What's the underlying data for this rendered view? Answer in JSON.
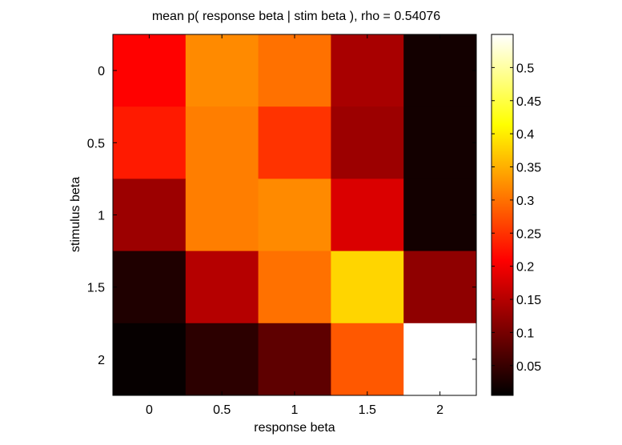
{
  "chart_data": {
    "type": "heatmap",
    "title": "mean p( response beta | stim beta ), rho = 0.54076",
    "xlabel": "response beta",
    "ylabel": "stimulus beta",
    "x_categories": [
      "0",
      "0.5",
      "1",
      "1.5",
      "2"
    ],
    "y_categories": [
      "0",
      "0.5",
      "1",
      "1.5",
      "2"
    ],
    "values": [
      [
        0.21,
        0.32,
        0.3,
        0.14,
        0.02
      ],
      [
        0.23,
        0.31,
        0.25,
        0.13,
        0.02
      ],
      [
        0.13,
        0.31,
        0.32,
        0.18,
        0.02
      ],
      [
        0.03,
        0.15,
        0.3,
        0.38,
        0.12
      ],
      [
        0.01,
        0.04,
        0.08,
        0.28,
        0.55
      ]
    ],
    "colormap": "hot",
    "clim": [
      0.005,
      0.55
    ],
    "colorbar": {
      "ticks": [
        0.05,
        0.1,
        0.15,
        0.2,
        0.25,
        0.3,
        0.35,
        0.4,
        0.45,
        0.5
      ],
      "tick_labels": [
        "0.05",
        "0.1",
        "0.15",
        "0.2",
        "0.25",
        "0.3",
        "0.35",
        "0.4",
        "0.45",
        "0.5"
      ]
    },
    "grid": false
  }
}
